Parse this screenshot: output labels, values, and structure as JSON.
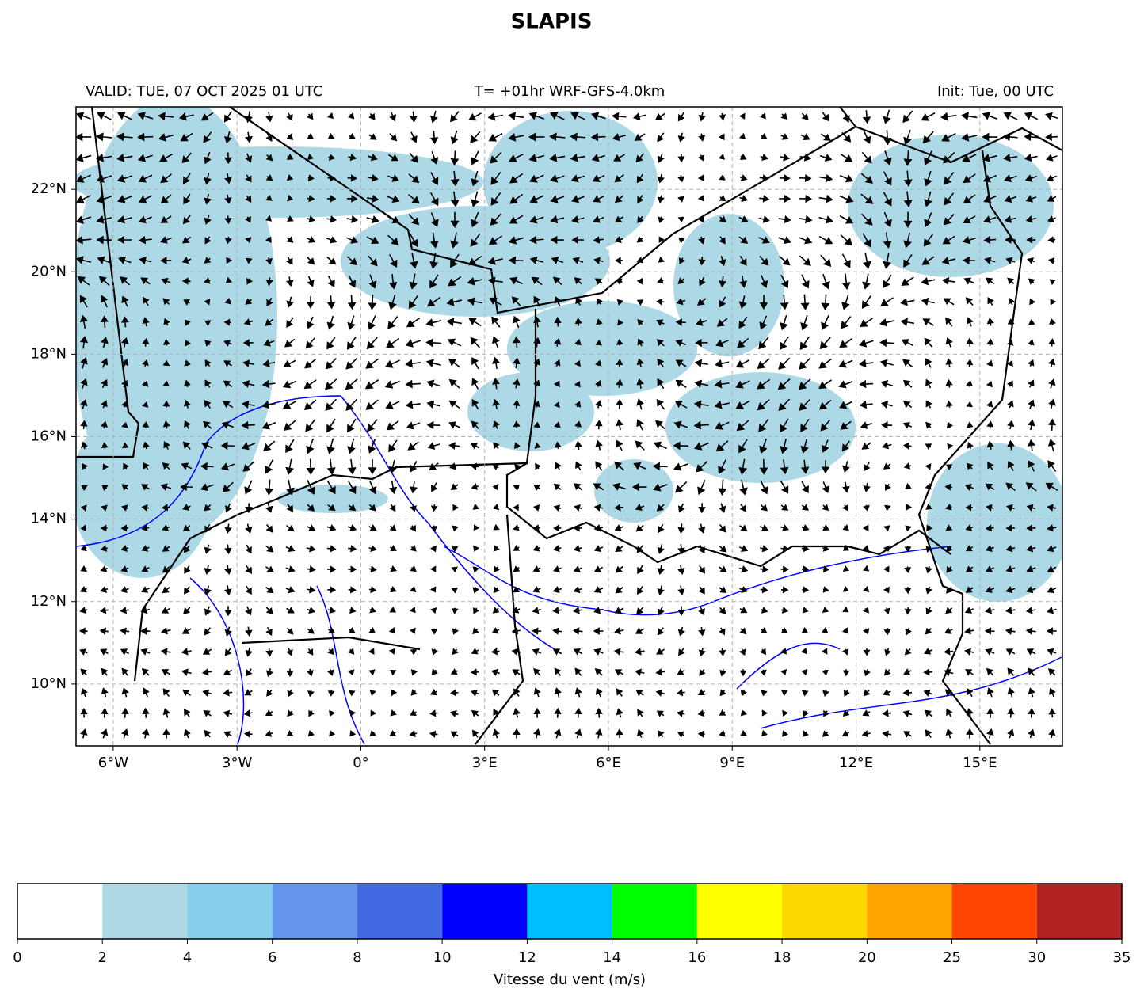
{
  "title": "SLAPIS",
  "header": {
    "valid": "VALID: TUE, 07 OCT 2025 01 UTC",
    "run": "T= +01hr WRF-GFS-4.0km",
    "init": "Init: Tue, 00 UTC"
  },
  "map": {
    "xlim": [
      -6.9,
      17
    ],
    "ylim": [
      8.5,
      24
    ],
    "xticks": [
      {
        "value": -6,
        "label": "6°W"
      },
      {
        "value": -3,
        "label": "3°W"
      },
      {
        "value": 0,
        "label": "0°"
      },
      {
        "value": 3,
        "label": "3°E"
      },
      {
        "value": 6,
        "label": "6°E"
      },
      {
        "value": 9,
        "label": "9°E"
      },
      {
        "value": 12,
        "label": "12°E"
      },
      {
        "value": 15,
        "label": "15°E"
      }
    ],
    "yticks": [
      {
        "value": 10,
        "label": "10°N"
      },
      {
        "value": 12,
        "label": "12°N"
      },
      {
        "value": 14,
        "label": "14°N"
      },
      {
        "value": 16,
        "label": "16°N"
      },
      {
        "value": 18,
        "label": "18°N"
      },
      {
        "value": 20,
        "label": "20°N"
      },
      {
        "value": 22,
        "label": "22°N"
      }
    ]
  },
  "colorbar": {
    "label": "Vitesse du vent (m/s)",
    "bounds": [
      0,
      2,
      4,
      6,
      8,
      10,
      12,
      14,
      16,
      18,
      20,
      25,
      30,
      35
    ],
    "colors": [
      "#ffffff",
      "#add8e6",
      "#87ceeb",
      "#6495ed",
      "#4169e1",
      "#0000ff",
      "#00bfff",
      "#00ff00",
      "#ffff00",
      "#ffd700",
      "#ffa500",
      "#ff4500",
      "#b22222"
    ]
  }
}
